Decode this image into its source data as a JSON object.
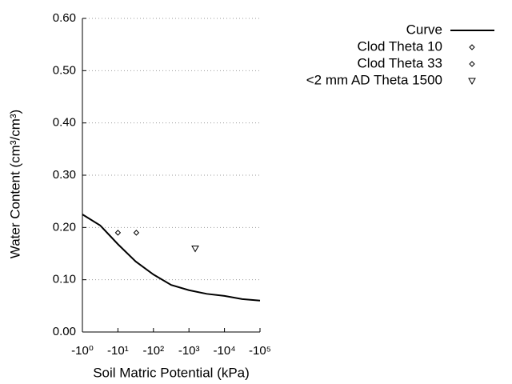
{
  "chart_data": {
    "type": "line",
    "x_label": "Soil Matric Potential (kPa)",
    "y_label": "Water Content (cm³/cm³)",
    "x_scale": "log",
    "xlim": [
      -1,
      -100000
    ],
    "xticks": [
      {
        "value": -1,
        "label": "-10⁰"
      },
      {
        "value": -10,
        "label": "-10¹"
      },
      {
        "value": -100,
        "label": "-10²"
      },
      {
        "value": -1000,
        "label": "-10³"
      },
      {
        "value": -10000,
        "label": "-10⁴"
      },
      {
        "value": -100000,
        "label": "-10⁵"
      }
    ],
    "ylim": [
      0,
      0.6
    ],
    "yticks": [
      {
        "value": 0,
        "label": "0.00"
      },
      {
        "value": 0.1,
        "label": "0.10"
      },
      {
        "value": 0.2,
        "label": "0.20"
      },
      {
        "value": 0.3,
        "label": "0.30"
      },
      {
        "value": 0.4,
        "label": "0.40"
      },
      {
        "value": 0.5,
        "label": "0.50"
      },
      {
        "value": 0.6,
        "label": "0.60"
      }
    ],
    "grid": true,
    "legend": "top-right",
    "series": [
      {
        "name": "Curve",
        "color": "#000000",
        "mark": "line",
        "x": [
          -1,
          -3.16,
          -10,
          -31.6,
          -100,
          -316,
          -1000,
          -3160,
          -10000,
          -31600,
          -100000
        ],
        "values": [
          0.225,
          0.204,
          0.168,
          0.135,
          0.11,
          0.09,
          0.08,
          0.073,
          0.069,
          0.063,
          0.06
        ]
      },
      {
        "name": "Clod Theta 10",
        "color": "#000000",
        "mark": "diamond",
        "x": [
          -10
        ],
        "values": [
          0.19
        ]
      },
      {
        "name": "Clod Theta 33",
        "color": "#000000",
        "mark": "diamond",
        "x": [
          -33
        ],
        "values": [
          0.19
        ]
      },
      {
        "name": "<2 mm AD Theta 1500",
        "color": "#000000",
        "mark": "triangle-down",
        "x": [
          -1500
        ],
        "values": [
          0.16
        ]
      }
    ]
  }
}
